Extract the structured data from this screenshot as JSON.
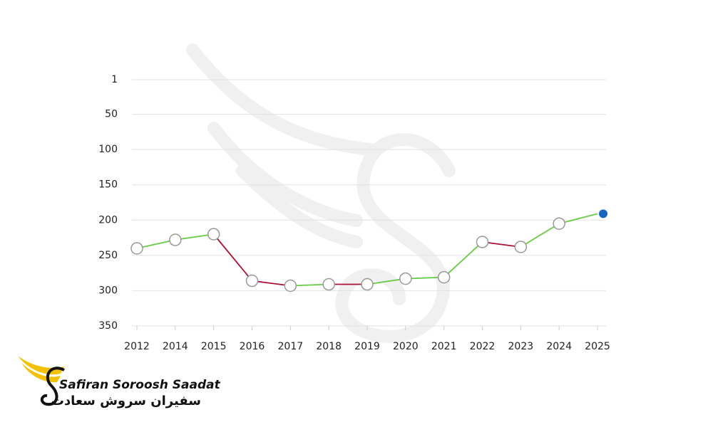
{
  "chart_data": {
    "type": "line",
    "categories": [
      "2012",
      "2014",
      "2015",
      "2016",
      "2017",
      "2018",
      "2019",
      "2020",
      "2021",
      "2022",
      "2023",
      "2024",
      "2025"
    ],
    "values": [
      240,
      228,
      220,
      286,
      293,
      291,
      291,
      283,
      281,
      231,
      238,
      205,
      191
    ],
    "ylim": [
      1,
      350
    ],
    "y_inverted": true,
    "yticks": [
      1,
      50,
      100,
      150,
      200,
      250,
      300,
      350
    ],
    "grid": true,
    "improve_color": "#66cc44",
    "decline_color": "#aa1133",
    "marker_color": "#ffffff",
    "last_marker_color": "#1565c0"
  },
  "logo": {
    "name": "Safiran Soroosh Saadat",
    "name_fa": "سفیران سروش سعادت"
  }
}
